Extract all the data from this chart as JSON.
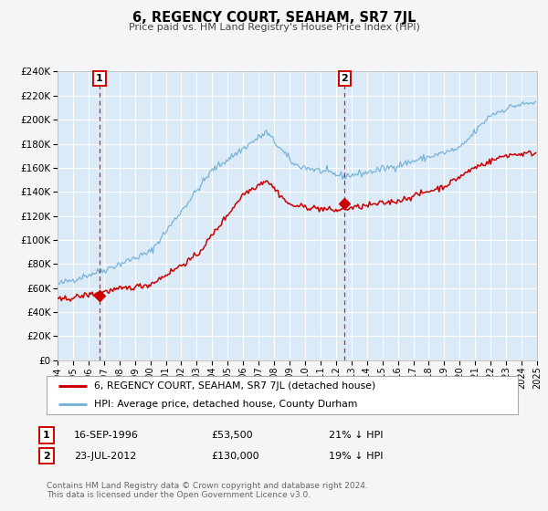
{
  "title": "6, REGENCY COURT, SEAHAM, SR7 7JL",
  "subtitle": "Price paid vs. HM Land Registry's House Price Index (HPI)",
  "ylim": [
    0,
    240000
  ],
  "yticks": [
    0,
    20000,
    40000,
    60000,
    80000,
    100000,
    120000,
    140000,
    160000,
    180000,
    200000,
    220000,
    240000
  ],
  "xstart": 1994,
  "xend": 2025,
  "sale1_date": 1996.71,
  "sale1_price": 53500,
  "sale1_info": "16-SEP-1996",
  "sale1_amount": "£53,500",
  "sale1_pct": "21% ↓ HPI",
  "sale2_date": 2012.55,
  "sale2_price": 130000,
  "sale2_info": "23-JUL-2012",
  "sale2_amount": "£130,000",
  "sale2_pct": "19% ↓ HPI",
  "hpi_color": "#7ab3d8",
  "price_color": "#cc0000",
  "plot_bg_color": "#daeaf7",
  "fig_bg_color": "#f5f5f5",
  "grid_color": "#ffffff",
  "legend1": "6, REGENCY COURT, SEAHAM, SR7 7JL (detached house)",
  "legend2": "HPI: Average price, detached house, County Durham",
  "footer": "Contains HM Land Registry data © Crown copyright and database right 2024.\nThis data is licensed under the Open Government Licence v3.0."
}
